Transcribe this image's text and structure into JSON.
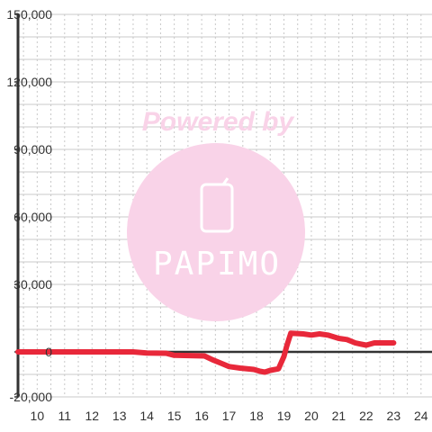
{
  "watermark": {
    "powered_text": "Powered by",
    "logo_text": "PAPIMO",
    "color": "#f9d3e8"
  },
  "colors": {
    "line": "#e8283a",
    "axis": "#333333",
    "grid": "#c8c8c8",
    "zero_line": "#333333"
  },
  "chart_data": {
    "type": "line",
    "xlim": [
      9.3,
      24.4
    ],
    "ylim": [
      -20000,
      150000
    ],
    "x_ticks": [
      10,
      11,
      12,
      13,
      14,
      15,
      16,
      17,
      18,
      19,
      20,
      21,
      22,
      23,
      24
    ],
    "y_ticks": [
      -20000,
      0,
      30000,
      60000,
      90000,
      120000,
      150000
    ],
    "x_tick_labels": [
      "10",
      "11",
      "12",
      "13",
      "14",
      "15",
      "16",
      "17",
      "18",
      "19",
      "20",
      "21",
      "22",
      "23",
      "24"
    ],
    "y_tick_labels": [
      "-20,000",
      "0",
      "30,000",
      "60,000",
      "90,000",
      "120,000",
      "150,000"
    ],
    "grid": true,
    "series": [
      {
        "x": [
          9.3,
          13.5,
          14.0,
          14.7,
          15.0,
          16.1,
          16.4,
          16.7,
          17.0,
          17.4,
          17.9,
          18.1,
          18.3,
          18.5,
          18.8,
          19.0,
          19.1,
          19.25,
          19.7,
          20.0,
          20.3,
          20.6,
          21.0,
          21.3,
          21.6,
          21.8,
          22.0,
          22.3,
          23.0
        ],
        "y": [
          0,
          0,
          -500,
          -600,
          -1500,
          -1800,
          -3500,
          -5000,
          -6500,
          -7200,
          -7800,
          -8500,
          -9000,
          -8200,
          -7500,
          -2000,
          2500,
          8300,
          8000,
          7500,
          8000,
          7500,
          6000,
          5500,
          4000,
          3500,
          3000,
          4000,
          4000
        ]
      }
    ]
  }
}
